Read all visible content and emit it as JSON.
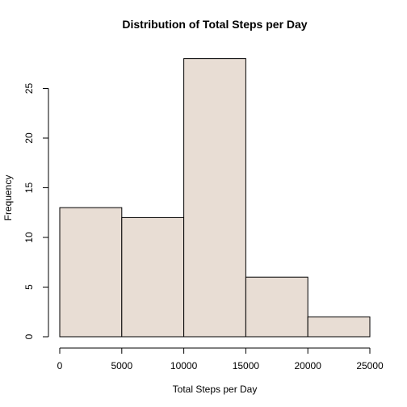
{
  "chart_data": {
    "type": "bar",
    "subtype": "histogram",
    "title": "Distribution of Total Steps per Day",
    "xlabel": "Total Steps per Day",
    "ylabel": "Frequency",
    "bins": [
      {
        "from": 0,
        "to": 5000,
        "value": 13
      },
      {
        "from": 5000,
        "to": 10000,
        "value": 12
      },
      {
        "from": 10000,
        "to": 15000,
        "value": 28
      },
      {
        "from": 15000,
        "to": 20000,
        "value": 6
      },
      {
        "from": 20000,
        "to": 25000,
        "value": 2
      }
    ],
    "xlim": [
      0,
      25000
    ],
    "ylim": [
      0,
      28
    ],
    "x_ticks": [
      0,
      5000,
      10000,
      15000,
      20000,
      25000
    ],
    "y_ticks": [
      0,
      5,
      10,
      15,
      20,
      25
    ],
    "bar_color": "#e8ddd4",
    "grid": false
  }
}
